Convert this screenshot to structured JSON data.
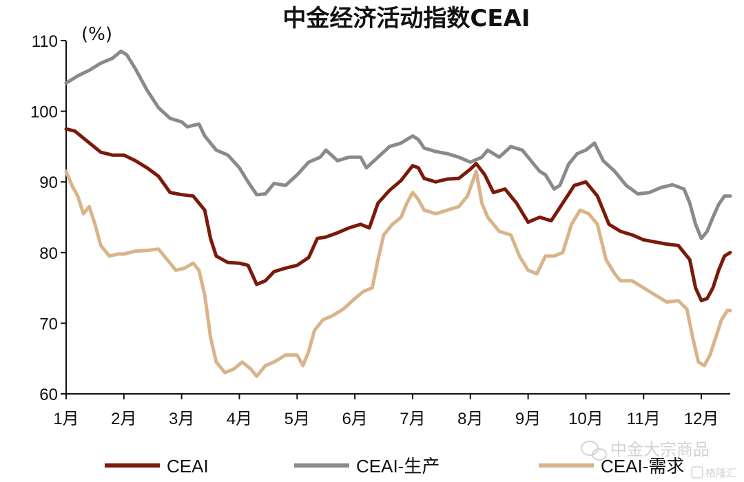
{
  "chart_data": {
    "type": "line",
    "title": "中金经济活动指数CEAI",
    "ylabel": "(%)",
    "xlabel": "",
    "ylim": [
      60,
      110
    ],
    "yticks": [
      60,
      70,
      80,
      90,
      100,
      110
    ],
    "xlim": [
      1,
      12.5
    ],
    "xticks": [
      {
        "value": 1,
        "label": "1月"
      },
      {
        "value": 2,
        "label": "2月"
      },
      {
        "value": 3,
        "label": "3月"
      },
      {
        "value": 4,
        "label": "4月"
      },
      {
        "value": 5,
        "label": "5月"
      },
      {
        "value": 6,
        "label": "6月"
      },
      {
        "value": 7,
        "label": "7月"
      },
      {
        "value": 8,
        "label": "8月"
      },
      {
        "value": 9,
        "label": "9月"
      },
      {
        "value": 10,
        "label": "10月"
      },
      {
        "value": 11,
        "label": "11月"
      },
      {
        "value": 12,
        "label": "12月"
      }
    ],
    "grid": false,
    "legend_position": "bottom",
    "series": [
      {
        "name": "CEAI",
        "color": "#7b1a08",
        "points": [
          [
            1.0,
            97.5
          ],
          [
            1.15,
            97.2
          ],
          [
            1.3,
            96.2
          ],
          [
            1.45,
            95.2
          ],
          [
            1.6,
            94.2
          ],
          [
            1.8,
            93.8
          ],
          [
            2.0,
            93.8
          ],
          [
            2.2,
            93.0
          ],
          [
            2.4,
            92.0
          ],
          [
            2.6,
            90.8
          ],
          [
            2.8,
            88.5
          ],
          [
            3.0,
            88.2
          ],
          [
            3.2,
            88.0
          ],
          [
            3.4,
            86.0
          ],
          [
            3.5,
            82.0
          ],
          [
            3.6,
            79.5
          ],
          [
            3.8,
            78.6
          ],
          [
            4.0,
            78.5
          ],
          [
            4.15,
            78.2
          ],
          [
            4.3,
            75.5
          ],
          [
            4.45,
            76.0
          ],
          [
            4.6,
            77.3
          ],
          [
            4.8,
            77.8
          ],
          [
            5.0,
            78.2
          ],
          [
            5.2,
            79.3
          ],
          [
            5.35,
            82.0
          ],
          [
            5.5,
            82.2
          ],
          [
            5.7,
            82.8
          ],
          [
            5.9,
            83.5
          ],
          [
            6.1,
            84.0
          ],
          [
            6.25,
            83.5
          ],
          [
            6.4,
            87.0
          ],
          [
            6.6,
            88.8
          ],
          [
            6.8,
            90.2
          ],
          [
            7.0,
            92.3
          ],
          [
            7.1,
            92.0
          ],
          [
            7.2,
            90.5
          ],
          [
            7.4,
            90.0
          ],
          [
            7.6,
            90.4
          ],
          [
            7.8,
            90.5
          ],
          [
            8.0,
            91.8
          ],
          [
            8.1,
            92.6
          ],
          [
            8.25,
            91.0
          ],
          [
            8.4,
            88.5
          ],
          [
            8.6,
            89.0
          ],
          [
            8.8,
            87.0
          ],
          [
            9.0,
            84.3
          ],
          [
            9.2,
            85.0
          ],
          [
            9.4,
            84.5
          ],
          [
            9.6,
            87.0
          ],
          [
            9.8,
            89.5
          ],
          [
            10.0,
            90.0
          ],
          [
            10.2,
            88.0
          ],
          [
            10.4,
            84.0
          ],
          [
            10.6,
            83.0
          ],
          [
            10.8,
            82.5
          ],
          [
            11.0,
            81.8
          ],
          [
            11.2,
            81.5
          ],
          [
            11.4,
            81.2
          ],
          [
            11.6,
            81.0
          ],
          [
            11.8,
            79.0
          ],
          [
            11.9,
            75.0
          ],
          [
            12.0,
            73.2
          ],
          [
            12.1,
            73.5
          ],
          [
            12.2,
            75.0
          ],
          [
            12.3,
            77.5
          ],
          [
            12.4,
            79.5
          ],
          [
            12.5,
            80.0
          ]
        ]
      },
      {
        "name": "CEAI-生产",
        "color": "#8a8a8a",
        "points": [
          [
            1.0,
            104.0
          ],
          [
            1.2,
            105.0
          ],
          [
            1.4,
            105.8
          ],
          [
            1.6,
            106.8
          ],
          [
            1.8,
            107.5
          ],
          [
            1.95,
            108.5
          ],
          [
            2.05,
            108.0
          ],
          [
            2.2,
            106.0
          ],
          [
            2.4,
            103.0
          ],
          [
            2.6,
            100.5
          ],
          [
            2.8,
            99.0
          ],
          [
            3.0,
            98.5
          ],
          [
            3.1,
            97.8
          ],
          [
            3.3,
            98.2
          ],
          [
            3.4,
            96.5
          ],
          [
            3.6,
            94.5
          ],
          [
            3.8,
            93.8
          ],
          [
            4.0,
            92.0
          ],
          [
            4.15,
            90.0
          ],
          [
            4.3,
            88.2
          ],
          [
            4.45,
            88.3
          ],
          [
            4.6,
            89.8
          ],
          [
            4.8,
            89.5
          ],
          [
            5.0,
            91.0
          ],
          [
            5.2,
            92.8
          ],
          [
            5.4,
            93.5
          ],
          [
            5.5,
            94.5
          ],
          [
            5.7,
            93.0
          ],
          [
            5.9,
            93.5
          ],
          [
            6.1,
            93.5
          ],
          [
            6.2,
            92.0
          ],
          [
            6.4,
            93.5
          ],
          [
            6.6,
            95.0
          ],
          [
            6.8,
            95.5
          ],
          [
            7.0,
            96.5
          ],
          [
            7.1,
            96.0
          ],
          [
            7.2,
            94.8
          ],
          [
            7.4,
            94.3
          ],
          [
            7.6,
            94.0
          ],
          [
            7.8,
            93.5
          ],
          [
            8.0,
            92.8
          ],
          [
            8.2,
            93.5
          ],
          [
            8.3,
            94.5
          ],
          [
            8.5,
            93.5
          ],
          [
            8.7,
            95.0
          ],
          [
            8.9,
            94.5
          ],
          [
            9.0,
            93.5
          ],
          [
            9.2,
            91.5
          ],
          [
            9.3,
            91.0
          ],
          [
            9.45,
            89.0
          ],
          [
            9.55,
            89.5
          ],
          [
            9.7,
            92.5
          ],
          [
            9.85,
            94.0
          ],
          [
            10.0,
            94.5
          ],
          [
            10.15,
            95.5
          ],
          [
            10.3,
            93.0
          ],
          [
            10.5,
            91.5
          ],
          [
            10.7,
            89.5
          ],
          [
            10.9,
            88.3
          ],
          [
            11.1,
            88.5
          ],
          [
            11.3,
            89.2
          ],
          [
            11.5,
            89.6
          ],
          [
            11.7,
            89.0
          ],
          [
            11.8,
            87.0
          ],
          [
            11.9,
            84.0
          ],
          [
            12.0,
            82.0
          ],
          [
            12.1,
            83.0
          ],
          [
            12.2,
            85.0
          ],
          [
            12.3,
            86.8
          ],
          [
            12.4,
            88.0
          ],
          [
            12.5,
            88.0
          ]
        ]
      },
      {
        "name": "CEAI-需求",
        "color": "#d9b48a",
        "points": [
          [
            1.0,
            91.5
          ],
          [
            1.1,
            89.5
          ],
          [
            1.2,
            88.0
          ],
          [
            1.3,
            85.5
          ],
          [
            1.4,
            86.5
          ],
          [
            1.5,
            84.0
          ],
          [
            1.6,
            81.0
          ],
          [
            1.75,
            79.5
          ],
          [
            1.9,
            79.8
          ],
          [
            2.0,
            79.8
          ],
          [
            2.2,
            80.2
          ],
          [
            2.4,
            80.3
          ],
          [
            2.6,
            80.5
          ],
          [
            2.7,
            79.5
          ],
          [
            2.9,
            77.5
          ],
          [
            3.05,
            77.8
          ],
          [
            3.2,
            78.5
          ],
          [
            3.3,
            77.5
          ],
          [
            3.4,
            74.0
          ],
          [
            3.5,
            68.0
          ],
          [
            3.6,
            64.5
          ],
          [
            3.75,
            63.0
          ],
          [
            3.9,
            63.5
          ],
          [
            4.05,
            64.5
          ],
          [
            4.2,
            63.5
          ],
          [
            4.3,
            62.5
          ],
          [
            4.45,
            64.0
          ],
          [
            4.6,
            64.5
          ],
          [
            4.8,
            65.5
          ],
          [
            5.0,
            65.5
          ],
          [
            5.1,
            64.0
          ],
          [
            5.2,
            66.0
          ],
          [
            5.3,
            69.0
          ],
          [
            5.45,
            70.5
          ],
          [
            5.6,
            71.0
          ],
          [
            5.8,
            72.0
          ],
          [
            6.0,
            73.5
          ],
          [
            6.15,
            74.5
          ],
          [
            6.3,
            75.0
          ],
          [
            6.4,
            79.0
          ],
          [
            6.5,
            82.5
          ],
          [
            6.65,
            84.0
          ],
          [
            6.8,
            85.0
          ],
          [
            6.9,
            87.0
          ],
          [
            7.0,
            88.5
          ],
          [
            7.1,
            87.5
          ],
          [
            7.2,
            86.0
          ],
          [
            7.4,
            85.5
          ],
          [
            7.6,
            86.0
          ],
          [
            7.8,
            86.5
          ],
          [
            7.95,
            88.0
          ],
          [
            8.1,
            91.5
          ],
          [
            8.2,
            87.0
          ],
          [
            8.3,
            85.0
          ],
          [
            8.5,
            83.0
          ],
          [
            8.7,
            82.5
          ],
          [
            8.85,
            79.5
          ],
          [
            9.0,
            77.5
          ],
          [
            9.15,
            77.0
          ],
          [
            9.3,
            79.5
          ],
          [
            9.45,
            79.5
          ],
          [
            9.6,
            80.0
          ],
          [
            9.75,
            84.0
          ],
          [
            9.9,
            86.0
          ],
          [
            10.05,
            85.5
          ],
          [
            10.2,
            84.0
          ],
          [
            10.35,
            79.0
          ],
          [
            10.5,
            77.0
          ],
          [
            10.6,
            76.0
          ],
          [
            10.8,
            76.0
          ],
          [
            11.0,
            75.0
          ],
          [
            11.2,
            74.0
          ],
          [
            11.4,
            73.0
          ],
          [
            11.6,
            73.2
          ],
          [
            11.75,
            72.0
          ],
          [
            11.85,
            68.0
          ],
          [
            11.95,
            64.5
          ],
          [
            12.05,
            64.0
          ],
          [
            12.15,
            65.5
          ],
          [
            12.25,
            68.0
          ],
          [
            12.35,
            70.5
          ],
          [
            12.45,
            71.8
          ],
          [
            12.5,
            71.8
          ]
        ]
      }
    ]
  },
  "watermark": {
    "main_text": "中金大宗商品",
    "sub_text": "格隆汇",
    "icon": "wechat-icon"
  }
}
